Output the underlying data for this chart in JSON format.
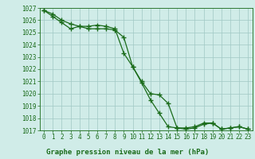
{
  "xlabel": "Graphe pression niveau de la mer (hPa)",
  "line1": {
    "x": [
      0,
      1,
      2,
      3,
      4,
      5,
      6,
      7,
      8,
      9,
      10,
      11,
      12,
      13,
      14,
      15,
      16,
      17,
      18,
      19,
      20,
      21,
      22,
      23
    ],
    "y": [
      1026.8,
      1026.5,
      1026.0,
      1025.7,
      1025.5,
      1025.3,
      1025.3,
      1025.3,
      1025.2,
      1024.6,
      1022.2,
      1020.9,
      1019.5,
      1018.4,
      1017.3,
      1017.2,
      1017.2,
      1017.3,
      1017.6,
      1017.6,
      1017.1,
      1017.2,
      1017.3,
      1017.1
    ]
  },
  "line2": {
    "x": [
      0,
      1,
      2,
      3,
      4,
      5,
      6,
      7,
      8,
      9,
      10,
      11,
      12,
      13,
      14,
      15,
      16,
      17,
      18,
      19,
      20,
      21,
      22,
      23
    ],
    "y": [
      1026.8,
      1026.3,
      1025.8,
      1025.3,
      1025.5,
      1025.5,
      1025.6,
      1025.5,
      1025.3,
      1023.3,
      1022.2,
      1021.0,
      1020.0,
      1019.9,
      1019.2,
      1017.2,
      1017.1,
      1017.2,
      1017.5,
      1017.6,
      1017.1,
      1017.2,
      1017.3,
      1017.1
    ]
  },
  "line_color": "#1a6b1a",
  "background_color": "#d0ece8",
  "grid_color": "#a0c8c4",
  "ylim": [
    1017,
    1027
  ],
  "xlim": [
    -0.5,
    23.5
  ],
  "yticks": [
    1017,
    1018,
    1019,
    1020,
    1021,
    1022,
    1023,
    1024,
    1025,
    1026,
    1027
  ],
  "xticks": [
    0,
    1,
    2,
    3,
    4,
    5,
    6,
    7,
    8,
    9,
    10,
    11,
    12,
    13,
    14,
    15,
    16,
    17,
    18,
    19,
    20,
    21,
    22,
    23
  ],
  "marker": "+",
  "markersize": 4,
  "linewidth": 0.9,
  "xlabel_fontsize": 6.5,
  "tick_fontsize": 5.5
}
